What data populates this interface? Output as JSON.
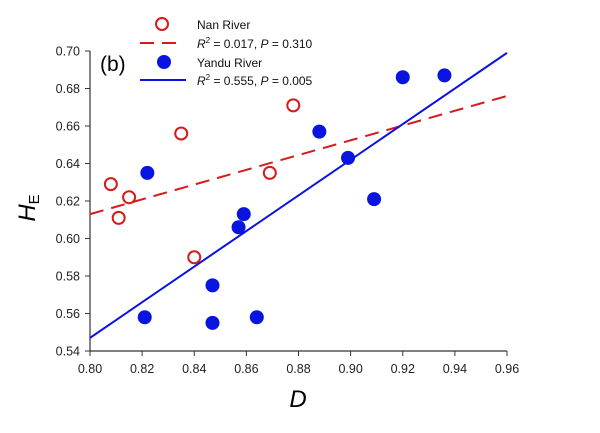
{
  "chart_data": {
    "type": "scatter",
    "panel_label": "(b)",
    "xlabel": "D",
    "ylabel": "H",
    "ylabel_subscript": "E",
    "xlim": [
      0.8,
      0.96
    ],
    "ylim": [
      0.54,
      0.7
    ],
    "x_ticks": [
      "0.80",
      "0.82",
      "0.84",
      "0.86",
      "0.88",
      "0.90",
      "0.92",
      "0.94",
      "0.96"
    ],
    "y_ticks": [
      "0.54",
      "0.56",
      "0.58",
      "0.60",
      "0.62",
      "0.64",
      "0.66",
      "0.68",
      "0.70"
    ],
    "grid": false,
    "legend_position": "top-left",
    "series": [
      {
        "name": "Nan River",
        "marker": "open-circle",
        "color": "#d71a1a",
        "fit_label_r": "R",
        "fit_label_rest": " = 0.017, ",
        "fit_label_p": "P",
        "fit_label_pval": " = 0.310",
        "fit_style": "dashed",
        "fit_line": {
          "x": [
            0.8,
            0.96
          ],
          "y": [
            0.613,
            0.676
          ]
        },
        "points": [
          {
            "x": 0.808,
            "y": 0.629
          },
          {
            "x": 0.811,
            "y": 0.611
          },
          {
            "x": 0.815,
            "y": 0.622
          },
          {
            "x": 0.835,
            "y": 0.656
          },
          {
            "x": 0.84,
            "y": 0.59
          },
          {
            "x": 0.869,
            "y": 0.635
          },
          {
            "x": 0.878,
            "y": 0.671
          }
        ]
      },
      {
        "name": "Yandu River",
        "marker": "filled-circle",
        "color": "#0a14e0",
        "fit_label_r": "R",
        "fit_label_rest": " = 0.555, ",
        "fit_label_p": "P",
        "fit_label_pval": " = 0.005",
        "fit_style": "solid",
        "fit_line": {
          "x": [
            0.8,
            0.96
          ],
          "y": [
            0.547,
            0.699
          ]
        },
        "points": [
          {
            "x": 0.821,
            "y": 0.558
          },
          {
            "x": 0.822,
            "y": 0.635
          },
          {
            "x": 0.847,
            "y": 0.575
          },
          {
            "x": 0.847,
            "y": 0.555
          },
          {
            "x": 0.857,
            "y": 0.606
          },
          {
            "x": 0.859,
            "y": 0.613
          },
          {
            "x": 0.864,
            "y": 0.558
          },
          {
            "x": 0.888,
            "y": 0.657
          },
          {
            "x": 0.899,
            "y": 0.643
          },
          {
            "x": 0.909,
            "y": 0.621
          },
          {
            "x": 0.92,
            "y": 0.686
          },
          {
            "x": 0.936,
            "y": 0.687
          }
        ]
      }
    ]
  }
}
